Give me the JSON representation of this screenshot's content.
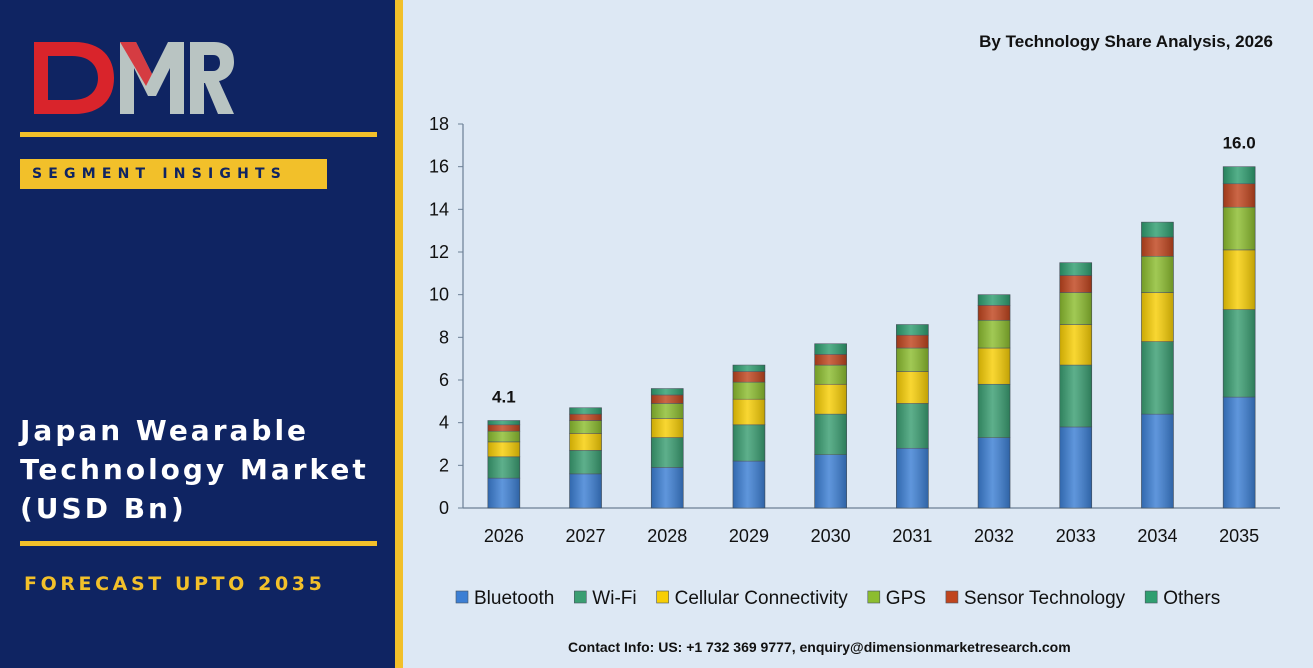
{
  "brand": {
    "logo_text": "DMR"
  },
  "sidebar": {
    "badge": "SEGMENT INSIGHTS",
    "title_lines": [
      "Japan Wearable",
      "Technology Market",
      "(USD Bn)"
    ],
    "forecast": "FORECAST UPTO 2035"
  },
  "header": {
    "subtitle": "By Technology Share Analysis, 2026"
  },
  "footer": {
    "contact": "Contact Info: US: +1 732 369 9777, enquiry@dimensionmarketresearch.com"
  },
  "colors": {
    "sidebar_bg": "#0f2462",
    "accent": "#f2c02a",
    "chart_bg": "#dde8f4",
    "logo_red": "#d9242b",
    "logo_grey": "#b9c4c2"
  },
  "chart_data": {
    "type": "bar",
    "stacked": true,
    "categories": [
      "2026",
      "2027",
      "2028",
      "2029",
      "2030",
      "2031",
      "2032",
      "2033",
      "2034",
      "2035"
    ],
    "series": [
      {
        "name": "Bluetooth",
        "color": "#3c7fd4",
        "values": [
          1.4,
          1.6,
          1.9,
          2.2,
          2.5,
          2.8,
          3.3,
          3.8,
          4.4,
          5.2
        ]
      },
      {
        "name": "Wi-Fi",
        "color": "#3a9e72",
        "values": [
          1.0,
          1.1,
          1.4,
          1.7,
          1.9,
          2.1,
          2.5,
          2.9,
          3.4,
          4.1
        ]
      },
      {
        "name": "Cellular Connectivity",
        "color": "#f7ce05",
        "values": [
          0.7,
          0.8,
          0.9,
          1.2,
          1.4,
          1.5,
          1.7,
          1.9,
          2.3,
          2.8
        ]
      },
      {
        "name": "GPS",
        "color": "#8cbd2f",
        "values": [
          0.5,
          0.6,
          0.7,
          0.8,
          0.9,
          1.1,
          1.3,
          1.5,
          1.7,
          2.0
        ]
      },
      {
        "name": "Sensor Technology",
        "color": "#c0451e",
        "values": [
          0.3,
          0.3,
          0.4,
          0.5,
          0.5,
          0.6,
          0.7,
          0.8,
          0.9,
          1.1
        ]
      },
      {
        "name": "Others",
        "color": "#2f9e70",
        "values": [
          0.2,
          0.3,
          0.3,
          0.3,
          0.5,
          0.5,
          0.5,
          0.6,
          0.7,
          0.8
        ]
      }
    ],
    "data_labels": [
      {
        "category": "2026",
        "text": "4.1"
      },
      {
        "category": "2035",
        "text": "16.0"
      }
    ],
    "y_ticks": [
      "0",
      "2",
      "4",
      "6",
      "8",
      "10",
      "12",
      "14",
      "16",
      "18"
    ],
    "ylim": [
      0,
      18
    ],
    "xlabel": "",
    "ylabel": "",
    "legend_position": "bottom",
    "grid": false
  }
}
